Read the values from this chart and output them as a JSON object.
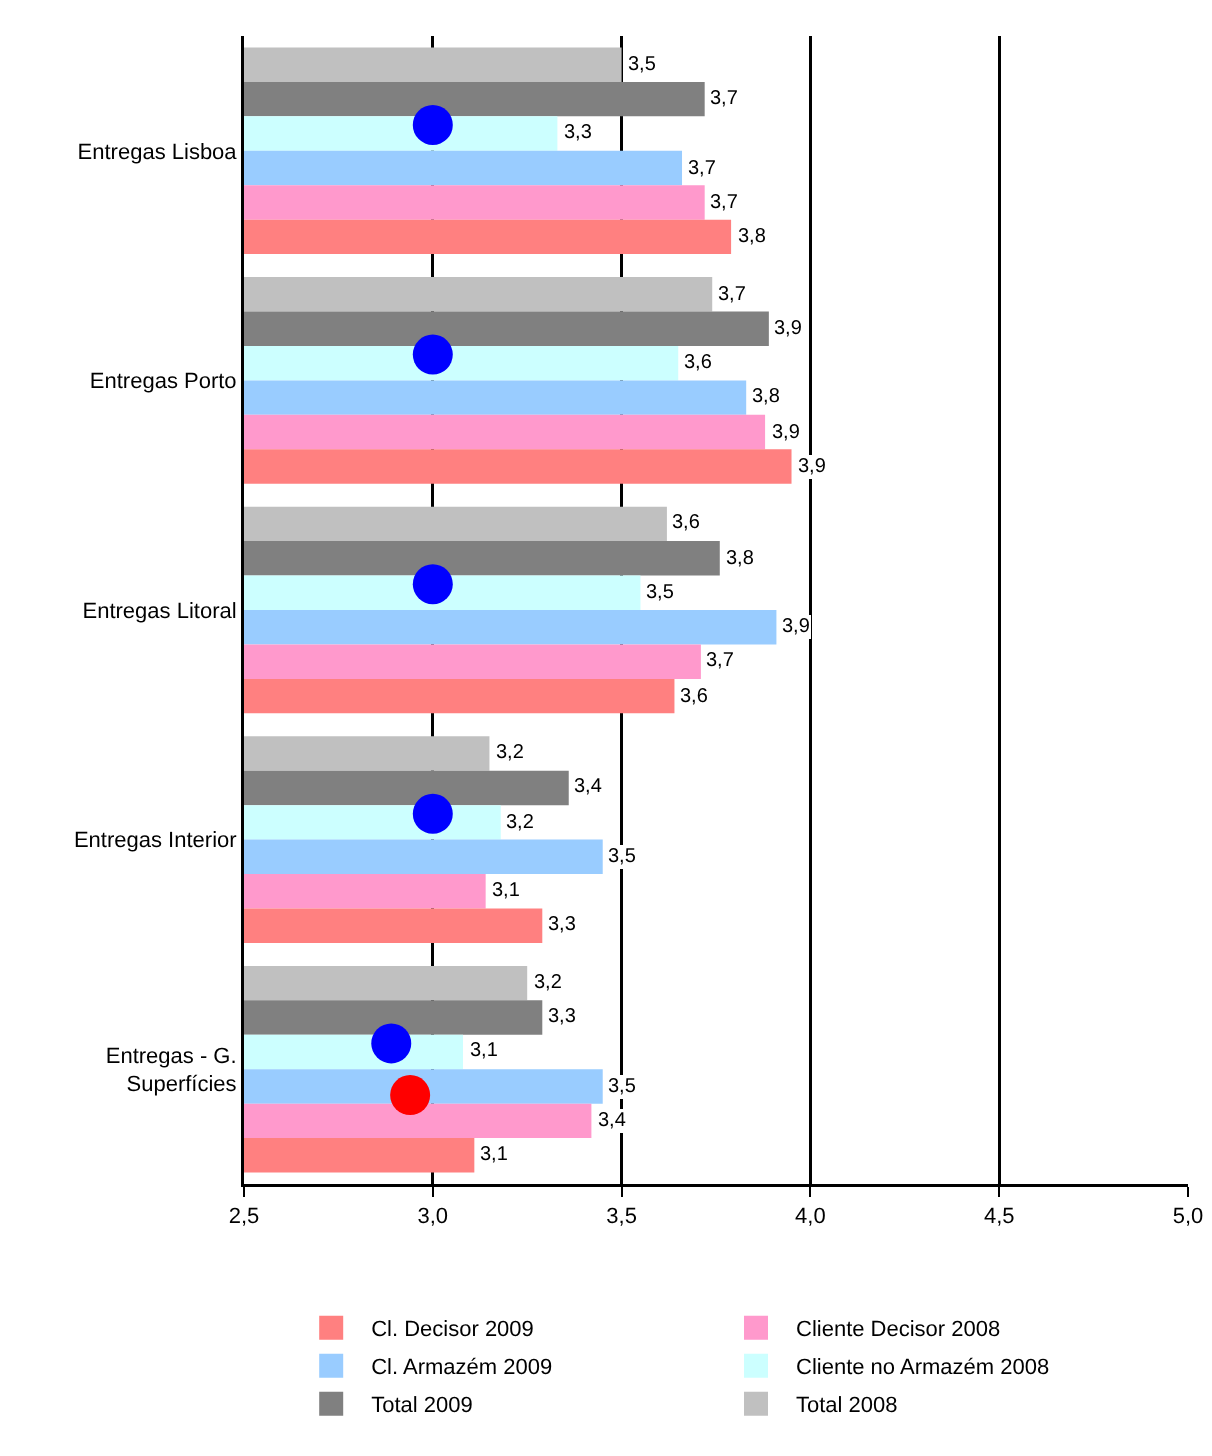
{
  "chart_data": {
    "type": "bar",
    "orientation": "horizontal",
    "categories": [
      "Entregas Lisboa",
      "Entregas Porto",
      "Entregas Litoral",
      "Entregas Interior",
      "Entregas - G. Superfícies"
    ],
    "xlim": [
      2.5,
      5.0
    ],
    "xticks": [
      {
        "value": 2.5,
        "label": "2,5"
      },
      {
        "value": 3.0,
        "label": "3,0"
      },
      {
        "value": 3.5,
        "label": "3,5"
      },
      {
        "value": 4.0,
        "label": "4,0"
      },
      {
        "value": 4.5,
        "label": "4,5"
      },
      {
        "value": 5.0,
        "label": "5,0"
      }
    ],
    "grid": "x",
    "legend": "bottom",
    "series": [
      {
        "name": "Total 2008",
        "color": "#c0c0c0",
        "values": [
          3.5,
          3.74,
          3.62,
          3.15,
          3.25
        ],
        "value_labels": [
          "3,5",
          "3,7",
          "3,6",
          "3,2",
          "3,2"
        ]
      },
      {
        "name": "Total 2009",
        "color": "#808080",
        "values": [
          3.72,
          3.89,
          3.76,
          3.36,
          3.29
        ],
        "value_labels": [
          "3,7",
          "3,9",
          "3,8",
          "3,4",
          "3,3"
        ]
      },
      {
        "name": "Cliente no Armazém 2008",
        "color": "#ccffff",
        "values": [
          3.33,
          3.65,
          3.55,
          3.18,
          3.08
        ],
        "value_labels": [
          "3,3",
          "3,6",
          "3,5",
          "3,2",
          "3,1"
        ]
      },
      {
        "name": "Cl. Armazém 2009",
        "color": "#99ccff",
        "values": [
          3.66,
          3.83,
          3.91,
          3.45,
          3.45
        ],
        "value_labels": [
          "3,7",
          "3,8",
          "3,9",
          "3,5",
          "3,5"
        ]
      },
      {
        "name": "Cliente Decisor 2008",
        "color": "#ff99cc",
        "values": [
          3.72,
          3.88,
          3.71,
          3.14,
          3.42
        ],
        "value_labels": [
          "3,7",
          "3,9",
          "3,7",
          "3,1",
          "3,4"
        ]
      },
      {
        "name": "Cl. Decisor 2009",
        "color": "#ff8080",
        "values": [
          3.79,
          3.95,
          3.64,
          3.29,
          3.11
        ],
        "value_labels": [
          "3,8",
          "3,9",
          "3,6",
          "3,3",
          "3,1"
        ]
      },
      {
        "type": "scatter",
        "marker": "circle",
        "color": "#0000ff",
        "values": [
          3.0,
          3.0,
          3.0,
          3.0,
          2.89
        ]
      },
      {
        "type": "scatter",
        "marker": "circle",
        "color": "#ff0000",
        "values": [
          null,
          null,
          null,
          null,
          2.94
        ]
      }
    ]
  }
}
